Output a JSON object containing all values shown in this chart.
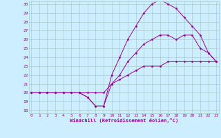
{
  "xlabel": "Windchill (Refroidissement éolien,°C)",
  "background_color": "#cceeff",
  "grid_color": "#aacccc",
  "line_color": "#990099",
  "xmin": 0,
  "xmax": 23,
  "ymin": 18,
  "ymax": 30,
  "yticks": [
    18,
    19,
    20,
    21,
    22,
    23,
    24,
    25,
    26,
    27,
    28,
    29,
    30
  ],
  "xticks": [
    0,
    1,
    2,
    3,
    4,
    5,
    6,
    7,
    8,
    9,
    10,
    11,
    12,
    13,
    14,
    15,
    16,
    17,
    18,
    19,
    20,
    21,
    22,
    23
  ],
  "series": [
    [
      20.0,
      20.0,
      20.0,
      20.0,
      20.0,
      20.0,
      20.0,
      19.5,
      18.5,
      18.5,
      21.0,
      22.0,
      23.5,
      24.5,
      25.5,
      26.0,
      26.5,
      26.5,
      26.0,
      26.5,
      26.5,
      25.0,
      24.5,
      23.5
    ],
    [
      20.0,
      20.0,
      20.0,
      20.0,
      20.0,
      20.0,
      20.0,
      19.5,
      18.5,
      18.5,
      22.0,
      24.0,
      26.0,
      27.5,
      29.0,
      30.0,
      30.5,
      30.0,
      29.5,
      28.5,
      27.5,
      26.5,
      24.5,
      23.5
    ],
    [
      20.0,
      20.0,
      20.0,
      20.0,
      20.0,
      20.0,
      20.0,
      20.0,
      20.0,
      20.0,
      21.0,
      21.5,
      22.0,
      22.5,
      23.0,
      23.0,
      23.0,
      23.5,
      23.5,
      23.5,
      23.5,
      23.5,
      23.5,
      23.5
    ]
  ]
}
